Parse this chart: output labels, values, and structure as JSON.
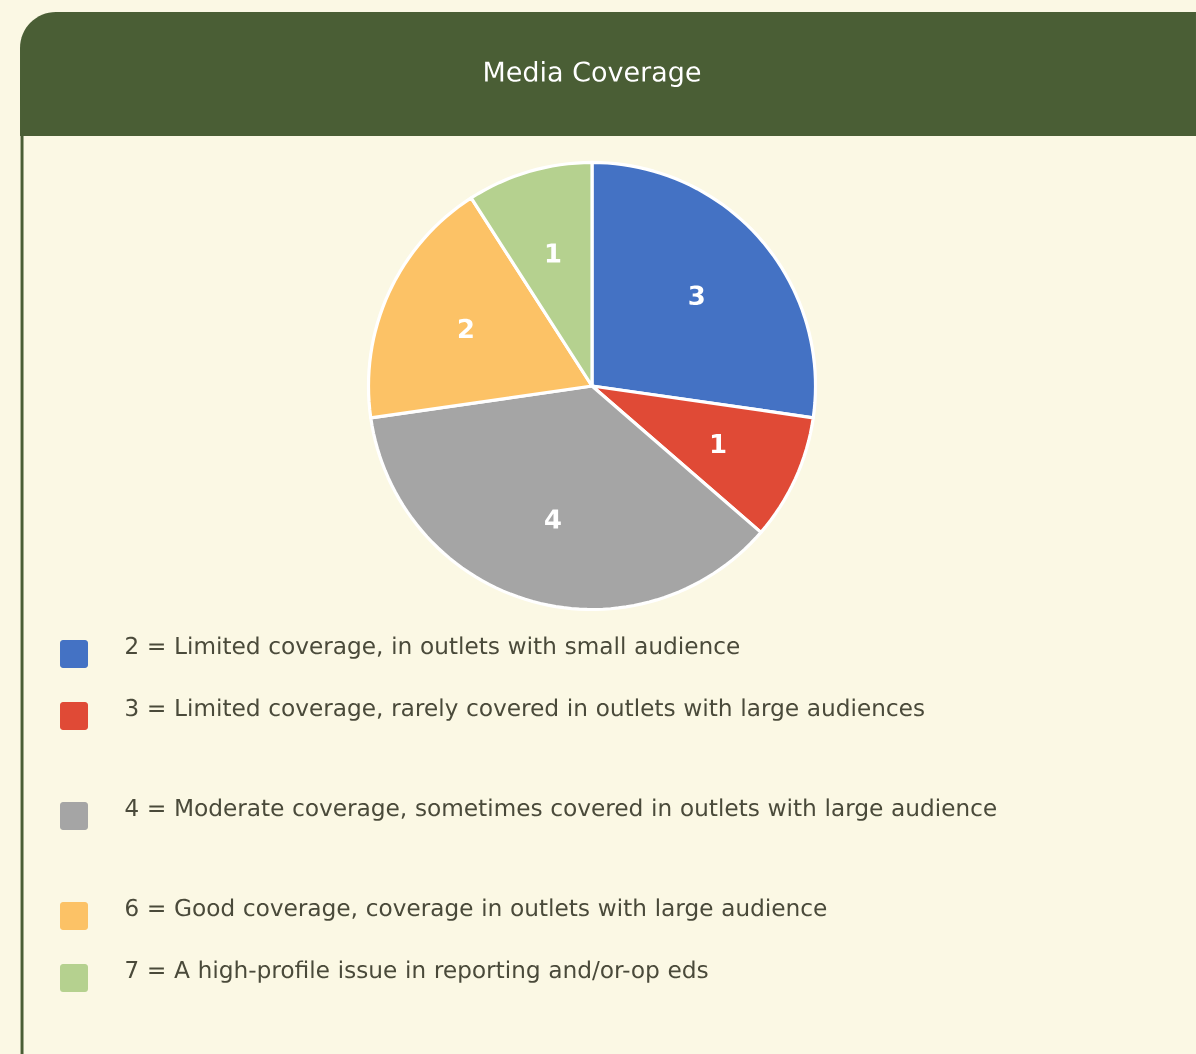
{
  "chart_data": {
    "type": "pie",
    "title": "Media Coverage",
    "categories": [
      "2 = Limited coverage, in outlets with small audience",
      "3 = Limited coverage, rarely covered in outlets with large audiences",
      "4 = Moderate coverage, sometimes covered in outlets with large audience",
      "6 = Good coverage, coverage in outlets with large audience",
      "7 = A high-profile issue in reporting and/or-op eds"
    ],
    "values": [
      3,
      1,
      4,
      2,
      1
    ],
    "colors": [
      "#4472c4",
      "#e04a36",
      "#a5a5a5",
      "#fcc266",
      "#b5d18f"
    ],
    "data_labels": true,
    "legend": "bottom"
  }
}
